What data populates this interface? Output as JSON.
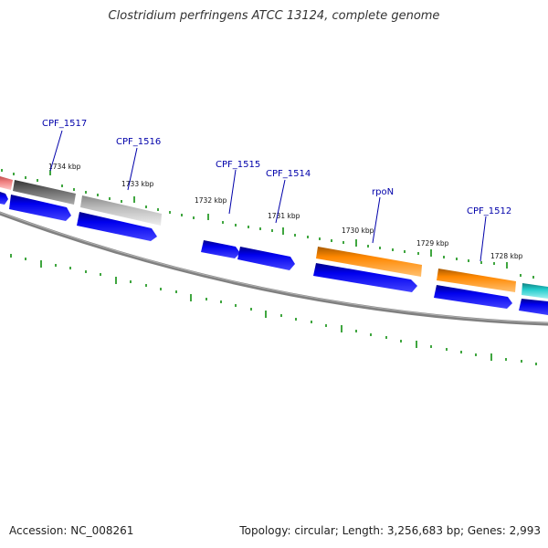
{
  "title": "Clostridium perfringens ATCC 13124, complete genome",
  "footer": {
    "accession": "Accession: NC_008261",
    "summary": "Topology: circular; Length: 3,256,683 bp; Genes: 2,993"
  },
  "colors": {
    "cds_blue": "#0000ee",
    "orange": "#ff8800",
    "dark_gray": "#666666",
    "light_gray": "#bbbbbb",
    "pink": "#f08080",
    "cyan": "#22cccc",
    "backbone": "#808080",
    "ticks": "#008800",
    "label": "#0000aa"
  },
  "gene_labels": [
    "CPF_1517",
    "CPF_1516",
    "CPF_1515",
    "CPF_1514",
    "rpoN",
    "CPF_1512"
  ],
  "kbp_labels": [
    "1734 kbp",
    "1733 kbp",
    "1732 kbp",
    "1731 kbp",
    "1730 kbp",
    "1729 kbp",
    "1728 kbp"
  ]
}
